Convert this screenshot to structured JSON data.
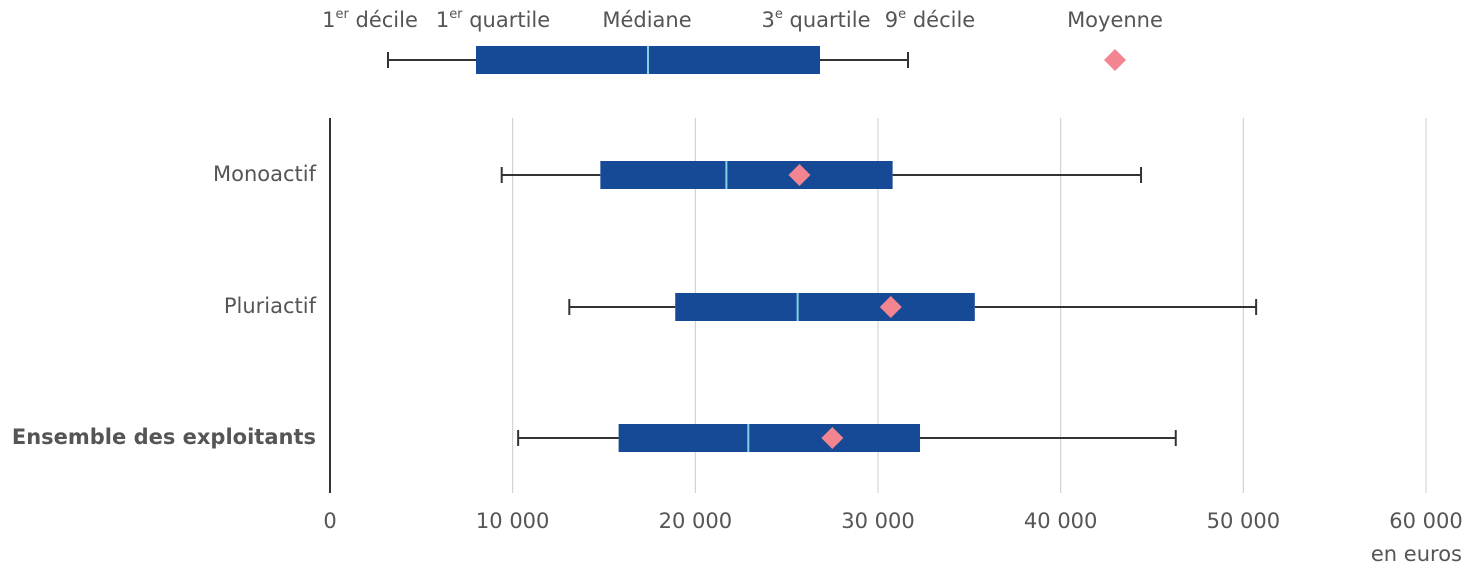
{
  "chart_data": {
    "type": "box",
    "orientation": "horizontal",
    "legend": {
      "d1": "1er décile",
      "q1": "1er quartile",
      "median": "Médiane",
      "q3": "3e quartile",
      "d9": "9e décile",
      "mean": "Moyenne"
    },
    "categories": [
      "Monoactif",
      "Pluriactif",
      "Ensemble des exploitants"
    ],
    "boxes": [
      {
        "d1": 9400,
        "q1": 14800,
        "median": 21700,
        "q3": 30800,
        "d9": 44400,
        "mean": 25700
      },
      {
        "d1": 13100,
        "q1": 18900,
        "median": 25600,
        "q3": 35300,
        "d9": 50700,
        "mean": 30700
      },
      {
        "d1": 10300,
        "q1": 15800,
        "median": 22900,
        "q3": 32300,
        "d9": 46300,
        "mean": 27500
      }
    ],
    "box_color": "#174a96",
    "median_color": "#7fd3e6",
    "mean_color": "#f2858f",
    "whisker_color": "#333333",
    "xlabel": "en euros",
    "xlim": [
      0,
      60000
    ],
    "xticks": [
      0,
      {
        "value": 10000,
        "label": "10 000"
      },
      {
        "value": 20000,
        "label": "20 000"
      },
      {
        "value": 30000,
        "label": "30 000"
      },
      {
        "value": 40000,
        "label": "40 000"
      },
      {
        "value": 50000,
        "label": "50 000"
      },
      {
        "value": 60000,
        "label": "60 000"
      }
    ],
    "grid": true
  }
}
